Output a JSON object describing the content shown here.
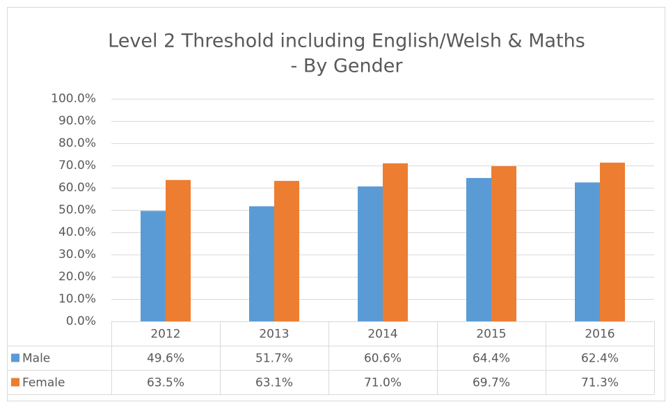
{
  "chart_data": {
    "type": "bar",
    "title": [
      "Level 2 Threshold including English/Welsh & Maths",
      "- By Gender"
    ],
    "categories": [
      "2012",
      "2013",
      "2014",
      "2015",
      "2016"
    ],
    "series": [
      {
        "name": "Male",
        "color": "#5b9bd5",
        "values": [
          49.6,
          51.7,
          60.6,
          64.4,
          62.4
        ],
        "value_labels": [
          "49.6%",
          "51.7%",
          "60.6%",
          "64.4%",
          "62.4%"
        ]
      },
      {
        "name": "Female",
        "color": "#ed7d31",
        "values": [
          63.5,
          63.1,
          71.0,
          69.7,
          71.3
        ],
        "value_labels": [
          "63.5%",
          "63.1%",
          "71.0%",
          "69.7%",
          "71.3%"
        ]
      }
    ],
    "ylim": [
      0,
      100
    ],
    "yticks": [
      {
        "value": 0,
        "label": "0.0%"
      },
      {
        "value": 10,
        "label": "10.0%"
      },
      {
        "value": 20,
        "label": "20.0%"
      },
      {
        "value": 30,
        "label": "30.0%"
      },
      {
        "value": 40,
        "label": "40.0%"
      },
      {
        "value": 50,
        "label": "50.0%"
      },
      {
        "value": 60,
        "label": "60.0%"
      },
      {
        "value": 70,
        "label": "70.0%"
      },
      {
        "value": 80,
        "label": "80.0%"
      },
      {
        "value": 90,
        "label": "90.0%"
      },
      {
        "value": 100,
        "label": "100.0%"
      }
    ],
    "grid": true
  }
}
